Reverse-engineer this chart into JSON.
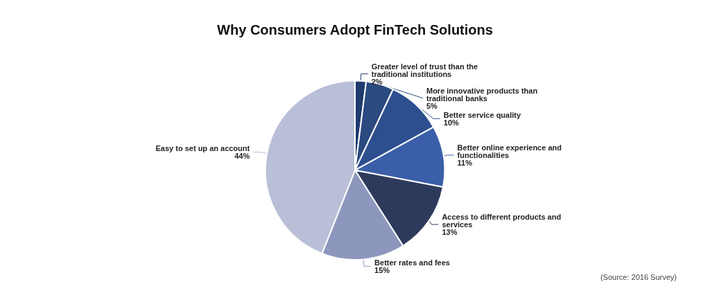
{
  "chart_data": {
    "type": "pie",
    "title": "Why Consumers Adopt FinTech Solutions",
    "categories": [
      "Greater level of trust than the traditional institutions",
      "More innovative products than traditional banks",
      "Better service quality",
      "Better online experience and functionalities",
      "Access to different products and services",
      "Better rates and fees",
      "Easy to set up an account"
    ],
    "values": [
      2,
      5,
      10,
      11,
      13,
      15,
      44
    ],
    "value_labels": [
      "2%",
      "5%",
      "10%",
      "11%",
      "13%",
      "15%",
      "44%"
    ],
    "colors": [
      "#1f3a6e",
      "#2a4a80",
      "#2d4f8f",
      "#3a5fa8",
      "#2e3a5c",
      "#8d97bd",
      "#b9bfd6"
    ],
    "annotations": [
      "(Source: 2016 Survey)"
    ]
  }
}
